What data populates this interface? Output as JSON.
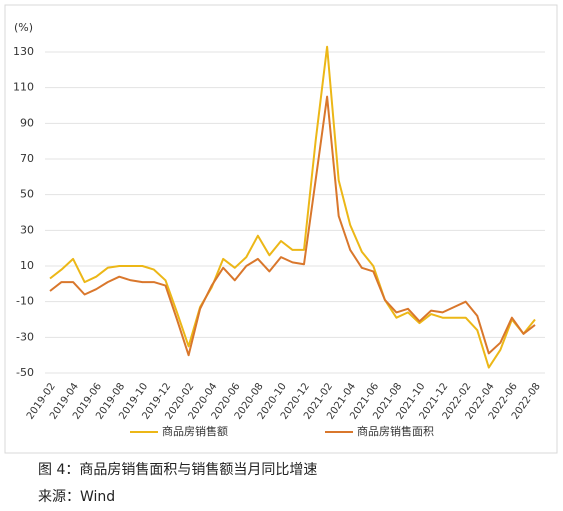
{
  "chart_data": {
    "type": "line",
    "y_label": "(%)",
    "categories": [
      "2019-02",
      null,
      "2019-04",
      null,
      "2019-06",
      null,
      "2019-08",
      null,
      "2019-10",
      null,
      "2019-12",
      null,
      "2020-02",
      null,
      "2020-04",
      null,
      "2020-06",
      null,
      "2020-08",
      null,
      "2020-10",
      null,
      "2020-12",
      null,
      "2021-02",
      null,
      "2021-04",
      null,
      "2021-06",
      null,
      "2021-08",
      null,
      "2021-10",
      null,
      "2021-12",
      null,
      "2022-02",
      null,
      "2022-04",
      null,
      "2022-06",
      null,
      "2022-08"
    ],
    "series": [
      {
        "name": "商品房销售额",
        "color": "#ecb717",
        "values": [
          3,
          8,
          14,
          1,
          4,
          9,
          10,
          10,
          10,
          8,
          2,
          -16,
          -35,
          -13,
          -2,
          14,
          9,
          15,
          27,
          16,
          24,
          19,
          19,
          80,
          133,
          58,
          33,
          18,
          10,
          -9,
          -19,
          -16,
          -22,
          -17,
          -19,
          -19,
          -19,
          -26,
          -47,
          -37,
          -20,
          -28,
          -20
        ]
      },
      {
        "name": "商品房销售面积",
        "color": "#d9772c",
        "values": [
          -4,
          1,
          1,
          -6,
          -3,
          1,
          4,
          2,
          1,
          1,
          -1,
          -20,
          -40,
          -14,
          -1,
          9,
          2,
          10,
          14,
          7,
          15,
          12,
          11,
          58,
          105,
          38,
          19,
          9,
          7,
          -9,
          -16,
          -14,
          -21,
          -15,
          -16,
          -13,
          -10,
          -18,
          -39,
          -33,
          -19,
          -28,
          -23
        ]
      }
    ],
    "ylim": [
      -50,
      130
    ],
    "yticks": [
      -50,
      -30,
      -10,
      10,
      30,
      50,
      70,
      90,
      110,
      130
    ],
    "grid": true
  },
  "caption": "图 4：商品房销售面积与销售额当月同比增速",
  "source": "来源：Wind"
}
